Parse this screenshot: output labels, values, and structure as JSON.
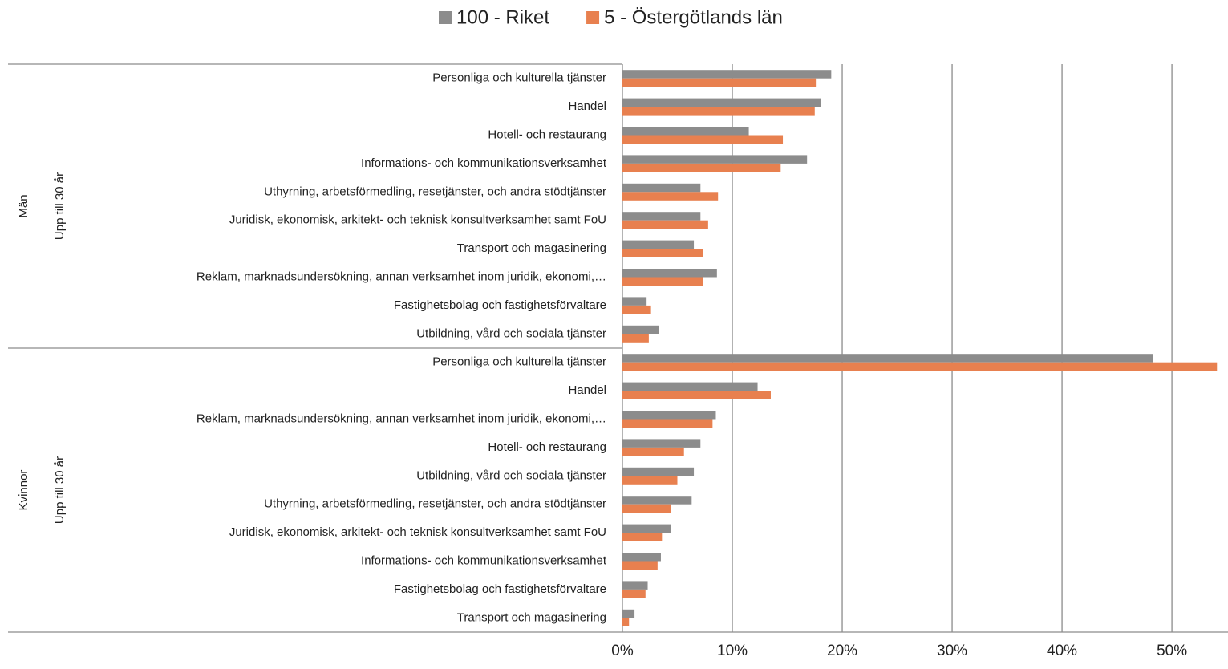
{
  "chart_data": {
    "type": "bar",
    "orientation": "horizontal",
    "groups": [
      {
        "label": "Män",
        "sublabel": "Upp till 30 år"
      },
      {
        "label": "Kvinnor",
        "sublabel": "Upp till 30 år"
      }
    ],
    "categories": [
      "Personliga och kulturella tjänster",
      "Handel",
      "Hotell- och restaurang",
      "Informations- och kommunikationsverksamhet",
      "Uthyrning, arbetsförmedling, resetjänster, och andra stödtjänster",
      "Juridisk, ekonomisk, arkitekt- och teknisk konsultverksamhet samt FoU",
      "Transport och magasinering",
      "Reklam, marknadsundersökning, annan verksamhet inom juridik, ekonomi,…",
      "Fastighetsbolag och fastighetsförvaltare",
      "Utbildning, vård och sociala tjänster",
      "Personliga och kulturella tjänster",
      "Handel",
      "Reklam, marknadsundersökning, annan verksamhet inom juridik, ekonomi,…",
      "Hotell- och restaurang",
      "Utbildning, vård och sociala tjänster",
      "Uthyrning, arbetsförmedling, resetjänster, och andra stödtjänster",
      "Juridisk, ekonomisk, arkitekt- och teknisk konsultverksamhet samt FoU",
      "Informations- och kommunikationsverksamhet",
      "Fastighetsbolag och fastighetsförvaltare",
      "Transport och magasinering"
    ],
    "series": [
      {
        "name": "100 - Riket",
        "color": "#8c8c8c",
        "values": [
          19.0,
          18.1,
          11.5,
          16.8,
          7.1,
          7.1,
          6.5,
          8.6,
          2.2,
          3.3,
          48.3,
          12.3,
          8.5,
          7.1,
          6.5,
          6.3,
          4.4,
          3.5,
          2.3,
          1.1
        ]
      },
      {
        "name": "5 - Östergötlands län",
        "color": "#e8804f",
        "values": [
          17.6,
          17.5,
          14.6,
          14.4,
          8.7,
          7.8,
          7.3,
          7.3,
          2.6,
          2.4,
          54.1,
          13.5,
          8.2,
          5.6,
          5.0,
          4.4,
          3.6,
          3.2,
          2.1,
          0.6
        ]
      }
    ],
    "xlim": [
      0,
      54.3
    ],
    "xticks": [
      {
        "value": 0,
        "label": "0%"
      },
      {
        "value": 10,
        "label": "10%"
      },
      {
        "value": 20,
        "label": "20%"
      },
      {
        "value": 30,
        "label": "30%"
      },
      {
        "value": 40,
        "label": "40%"
      },
      {
        "value": 50,
        "label": "50%"
      }
    ],
    "grid": true,
    "legend": "top"
  }
}
